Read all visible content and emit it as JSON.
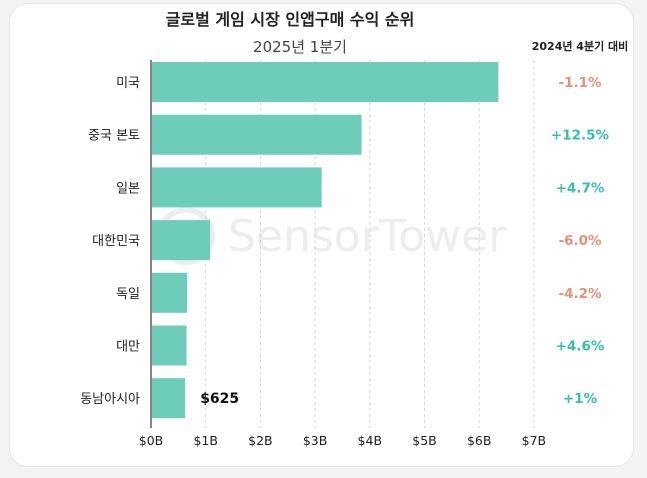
{
  "title": "글로벌 게임 시장 인앱구매 수익 순위",
  "subtitle": "2025년 1분기",
  "change_header": "2024년 4분기 대비",
  "watermark": "SensorTower",
  "colors": {
    "bar": "#6ecdb9",
    "positive": "#36bfaa",
    "negative": "#e89077",
    "grid": "#d7d7d7",
    "axis": "#333333"
  },
  "chart_data": {
    "type": "bar",
    "orientation": "horizontal",
    "categories": [
      "미국",
      "중국 본토",
      "일본",
      "대한민국",
      "독일",
      "대만",
      "동남아시아"
    ],
    "values": [
      6.35,
      3.85,
      3.12,
      1.08,
      0.66,
      0.65,
      0.625
    ],
    "value_unit": "B USD",
    "xlim": [
      0,
      7
    ],
    "x_ticks": [
      "$0B",
      "$1B",
      "$2B",
      "$3B",
      "$4B",
      "$5B",
      "$6B",
      "$7B"
    ],
    "data_labels": [
      "",
      "",
      "",
      "",
      "",
      "",
      "$625"
    ],
    "changes": [
      "-1.1%",
      "+12.5%",
      "+4.7%",
      "-6.0%",
      "-4.2%",
      "+4.6%",
      "+1%"
    ],
    "grid": true
  }
}
